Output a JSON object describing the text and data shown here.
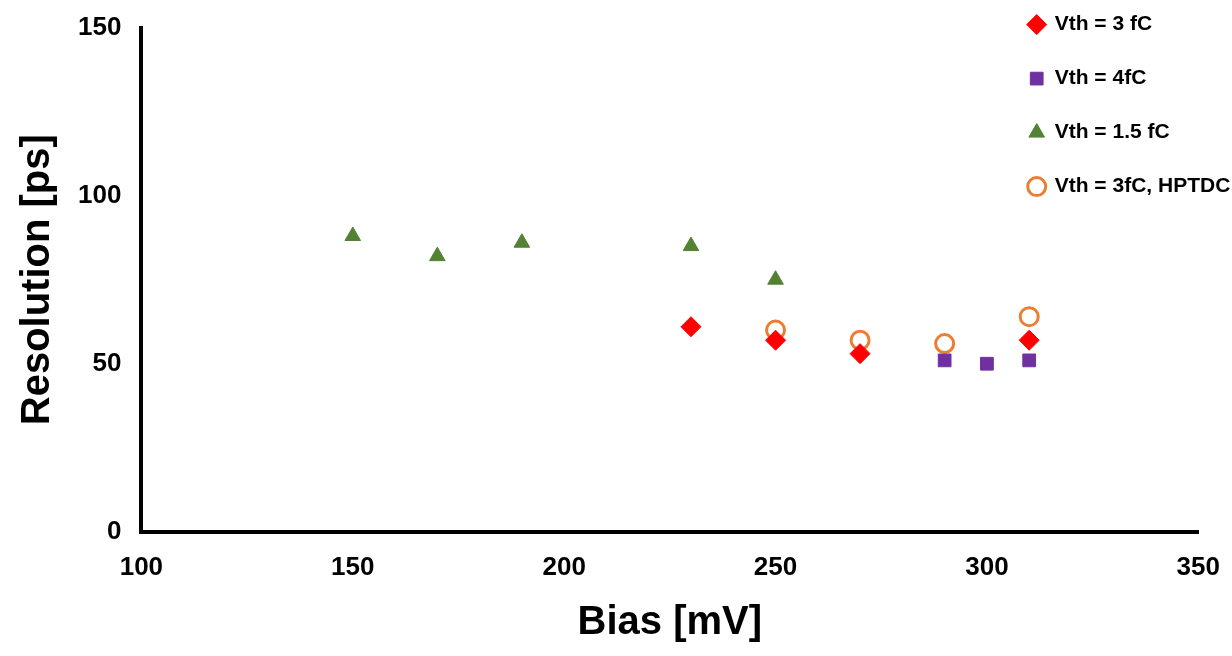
{
  "chart_data": {
    "type": "scatter",
    "xlabel": "Bias [mV]",
    "ylabel": "Resolution [ps]",
    "xlim": [
      100,
      350
    ],
    "xticks": [
      100,
      150,
      200,
      250,
      300,
      350
    ],
    "ylim": [
      0,
      150
    ],
    "yticks": [
      0,
      50,
      100,
      150
    ],
    "grid": false,
    "legend": "top right",
    "series": [
      {
        "name": "Vth = 3 fC",
        "color": "#ff0000",
        "marker": "diamond",
        "x": [
          230,
          250,
          270,
          310
        ],
        "values": [
          61,
          57,
          53,
          57
        ]
      },
      {
        "name": "Vth = 4fC",
        "color": "#7030a0",
        "marker": "square",
        "x": [
          290,
          300,
          310
        ],
        "values": [
          51,
          50,
          51
        ]
      },
      {
        "name": "Vth = 1.5 fC",
        "color": "#548235",
        "marker": "triangle",
        "x": [
          150,
          170,
          190,
          230,
          250
        ],
        "values": [
          88,
          82,
          86,
          85,
          75
        ]
      },
      {
        "name": "Vth = 3fC, HPTDC",
        "color": "#ed7d31",
        "marker": "circle",
        "x": [
          250,
          270,
          290,
          310
        ],
        "values": [
          60,
          57,
          56,
          64
        ]
      }
    ]
  }
}
